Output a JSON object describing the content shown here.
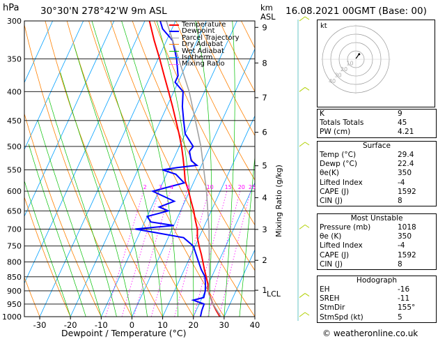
{
  "header": {
    "pressure_unit": "hPa",
    "location": "30°30'N  278°42'W  9m  ASL",
    "height_unit": "km",
    "height_unit2": "ASL",
    "datetime": "16.08.2021  00GMT  (Base: 00)"
  },
  "footer": {
    "credit": "© weatheronline.co.uk"
  },
  "hodograph": {
    "unit_label": "kt",
    "ring_labels": [
      "10",
      "20",
      "30",
      "40"
    ]
  },
  "colors": {
    "temperature": "#ff0000",
    "dewpoint": "#0000ff",
    "parcel": "#a0a0a0",
    "dry_adiabat": "#ff8000",
    "wet_adiabat": "#00c000",
    "isotherm": "#00a0ff",
    "mixing_ratio": "#ff00ff"
  },
  "indices": {
    "top": [
      {
        "label": "K",
        "value": "9"
      },
      {
        "label": "Totals Totals",
        "value": "45"
      },
      {
        "label": "PW (cm)",
        "value": "4.21"
      }
    ],
    "surface": {
      "title": "Surface",
      "rows": [
        {
          "label": "Temp (°C)",
          "value": "29.4"
        },
        {
          "label": "Dewp (°C)",
          "value": "22.4"
        },
        {
          "label": "θe(K)",
          "value": "350"
        },
        {
          "label": "Lifted Index",
          "value": "-4"
        },
        {
          "label": "CAPE (J)",
          "value": "1592"
        },
        {
          "label": "CIN (J)",
          "value": "8"
        }
      ]
    },
    "most_unstable": {
      "title": "Most Unstable",
      "rows": [
        {
          "label": "Pressure (mb)",
          "value": "1018"
        },
        {
          "label": "θe (K)",
          "value": "350"
        },
        {
          "label": "Lifted Index",
          "value": "-4"
        },
        {
          "label": "CAPE (J)",
          "value": "1592"
        },
        {
          "label": "CIN (J)",
          "value": "8"
        }
      ]
    },
    "hodograph": {
      "title": "Hodograph",
      "rows": [
        {
          "label": "EH",
          "value": "-16"
        },
        {
          "label": "SREH",
          "value": "-11"
        },
        {
          "label": "StmDir",
          "value": "155°"
        },
        {
          "label": "StmSpd (kt)",
          "value": "5"
        }
      ]
    }
  },
  "chart_data": {
    "type": "line",
    "xlabel": "Dewpoint / Temperature (°C)",
    "ylabel": "hPa",
    "right_axis_label": "Mixing Ratio (g/kg)",
    "xlim": [
      -35,
      40
    ],
    "ylim": [
      1000,
      300
    ],
    "x_ticks": [
      -30,
      -20,
      -10,
      0,
      10,
      20,
      30,
      40
    ],
    "pressure_levels": [
      300,
      350,
      400,
      450,
      500,
      550,
      600,
      650,
      700,
      750,
      800,
      850,
      900,
      950,
      1000
    ],
    "km_ticks": [
      {
        "km": "9",
        "p": 308
      },
      {
        "km": "8",
        "p": 356
      },
      {
        "km": "7",
        "p": 410
      },
      {
        "km": "6",
        "p": 472
      },
      {
        "km": "5",
        "p": 541
      },
      {
        "km": "4",
        "p": 616
      },
      {
        "km": "3",
        "p": 701
      },
      {
        "km": "2",
        "p": 795
      },
      {
        "km": "1",
        "p": 898
      }
    ],
    "lcl_label": "LCL",
    "lcl_pressure": 910,
    "mixing_ratio_labels": [
      "2",
      "3",
      "4",
      "6",
      "10",
      "15",
      "20",
      "25"
    ],
    "mixing_ratio_values": [
      2,
      3,
      4,
      6,
      10,
      15,
      20,
      25
    ],
    "legend": [
      "Temperature",
      "Dewpoint",
      "Parcel Trajectory",
      "Dry Adiabat",
      "Wet Adiabat",
      "Isotherm",
      "Mixing Ratio"
    ],
    "series": [
      {
        "name": "Temperature",
        "points": [
          [
            1005,
            29.4
          ],
          [
            1000,
            28.6
          ],
          [
            975,
            26.5
          ],
          [
            950,
            24.5
          ],
          [
            925,
            22.7
          ],
          [
            900,
            21.0
          ],
          [
            875,
            19.8
          ],
          [
            850,
            18.2
          ],
          [
            825,
            16.5
          ],
          [
            800,
            14.9
          ],
          [
            775,
            13.2
          ],
          [
            750,
            11.3
          ],
          [
            725,
            9.5
          ],
          [
            700,
            8.2
          ],
          [
            675,
            6.2
          ],
          [
            650,
            4.3
          ],
          [
            625,
            2.0
          ],
          [
            600,
            -0.3
          ],
          [
            575,
            -3.0
          ],
          [
            550,
            -4.9
          ],
          [
            525,
            -7.0
          ],
          [
            500,
            -9.3
          ],
          [
            475,
            -12.0
          ],
          [
            450,
            -15.0
          ],
          [
            425,
            -18.2
          ],
          [
            400,
            -21.7
          ],
          [
            375,
            -25.5
          ],
          [
            350,
            -29.5
          ],
          [
            325,
            -34.0
          ],
          [
            300,
            -38.5
          ]
        ]
      },
      {
        "name": "Dewpoint",
        "points": [
          [
            1005,
            22.4
          ],
          [
            1000,
            22.3
          ],
          [
            975,
            21.8
          ],
          [
            950,
            21.6
          ],
          [
            935,
            17.5
          ],
          [
            925,
            20.5
          ],
          [
            900,
            20.0
          ],
          [
            875,
            19.0
          ],
          [
            850,
            17.8
          ],
          [
            825,
            15.5
          ],
          [
            800,
            13.5
          ],
          [
            775,
            11.5
          ],
          [
            750,
            9.4
          ],
          [
            725,
            5.0
          ],
          [
            710,
            -5.0
          ],
          [
            700,
            -12.0
          ],
          [
            690,
            0.0
          ],
          [
            680,
            -8.0
          ],
          [
            665,
            -10.0
          ],
          [
            650,
            -4.0
          ],
          [
            640,
            -7.5
          ],
          [
            625,
            -3.5
          ],
          [
            600,
            -12.0
          ],
          [
            580,
            -3.0
          ],
          [
            560,
            -7.0
          ],
          [
            550,
            -12.0
          ],
          [
            545,
            -7.5
          ],
          [
            540,
            -1.5
          ],
          [
            530,
            -4.0
          ],
          [
            520,
            -5.0
          ],
          [
            510,
            -6.0
          ],
          [
            500,
            -5.5
          ],
          [
            475,
            -10.0
          ],
          [
            450,
            -12.5
          ],
          [
            425,
            -15.0
          ],
          [
            400,
            -17.0
          ],
          [
            385,
            -21.0
          ],
          [
            375,
            -21.0
          ],
          [
            350,
            -24.0
          ],
          [
            325,
            -28.0
          ],
          [
            310,
            -33.0
          ],
          [
            300,
            -35.0
          ]
        ]
      },
      {
        "name": "Parcel Trajectory",
        "points": [
          [
            1005,
            29.4
          ],
          [
            950,
            24.5
          ],
          [
            910,
            21.5
          ],
          [
            850,
            19.3
          ],
          [
            800,
            17.0
          ],
          [
            700,
            12.0
          ],
          [
            600,
            5.5
          ],
          [
            500,
            -3.0
          ],
          [
            400,
            -15.0
          ],
          [
            300,
            -33.0
          ]
        ]
      }
    ],
    "hodograph_points_kt": [
      [
        0,
        1
      ],
      [
        1,
        2
      ],
      [
        2,
        3.5
      ],
      [
        3,
        5
      ],
      [
        4,
        6
      ]
    ]
  }
}
